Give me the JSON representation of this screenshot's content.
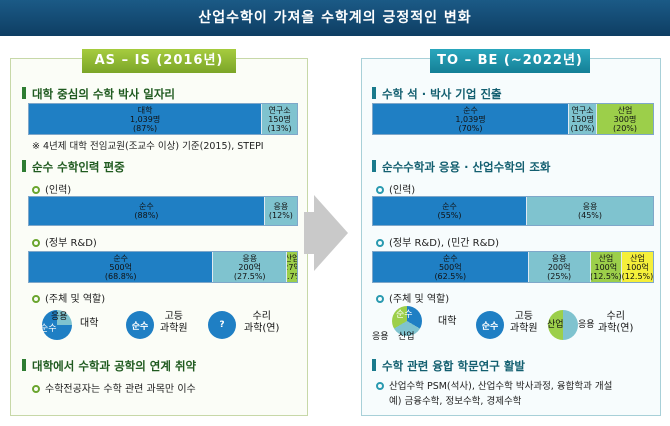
{
  "title": "산업수학이 가져올 수학계의 긍정적인 변화",
  "left": {
    "header": "AS – IS (2016년)",
    "sec1": "대학 중심의 수학 박사 일자리",
    "bar1": [
      {
        "text": "대학\n1,039명\n(87%)",
        "pct": 87,
        "color": "#1f7fc4"
      },
      {
        "text": "연구소\n150명\n(13%)",
        "pct": 13,
        "color": "#7fc3cf"
      }
    ],
    "note1": "※ 4년제 대학 전임교원(조교수 이상) 기준(2015), STEPI",
    "sec2": "순수 수학인력 편중",
    "sub_people": "(인력)",
    "bar2": [
      {
        "text": "순수\n(88%)",
        "pct": 88,
        "color": "#1f7fc4"
      },
      {
        "text": "응용\n(12%)",
        "pct": 12,
        "color": "#7fc3cf"
      }
    ],
    "sub_rd": "(정부 R&D)",
    "bar3": [
      {
        "text": "순수\n500억\n(68.8%)",
        "pct": 68.8,
        "color": "#1f7fc4"
      },
      {
        "text": "응용\n200억\n(27.5%)",
        "pct": 27.5,
        "color": "#7fc3cf"
      },
      {
        "text": "산업\n27억\n(3.7%)",
        "pct": 3.7,
        "color": "#9ccf4a"
      }
    ],
    "sub_role": "(주체 및 역할)",
    "role_pie_a": "순수",
    "role_pie_b": "응용",
    "role_1": "대학",
    "role_circle_2": "순수",
    "role_2": "고등\n과학원",
    "role_circle_3": "?",
    "role_3": "수리\n과학(연)",
    "sec3": "대학에서 수학과 공학의 연계 취약",
    "sub_last": "수학전공자는 수학 관련 과목만 이수"
  },
  "right": {
    "header": "TO – BE (~2022년)",
    "sec1": "수학 석 · 박사 기업 진출",
    "bar1": [
      {
        "text": "순수\n1,039명\n(70%)",
        "pct": 70,
        "color": "#1f7fc4"
      },
      {
        "text": "연구소\n150명\n(10%)",
        "pct": 10,
        "color": "#7fc3cf"
      },
      {
        "text": "산업\n300명\n(20%)",
        "pct": 20,
        "color": "#9ccf4a"
      }
    ],
    "sec2": "순수수학과 응용 · 산업수학의 조화",
    "sub_people": "(인력)",
    "bar2": [
      {
        "text": "순수\n(55%)",
        "pct": 55,
        "color": "#1f7fc4"
      },
      {
        "text": "응용\n(45%)",
        "pct": 45,
        "color": "#7fc3cf"
      }
    ],
    "sub_rd": "(정부 R&D), (민간 R&D)",
    "bar3": [
      {
        "text": "순수\n500억\n(62.5%)",
        "pct": 62.5,
        "color": "#1f7fc4"
      },
      {
        "text": "응용\n200억\n(25%)",
        "pct": 25,
        "color": "#7fc3cf"
      },
      {
        "text": "산업\n100억\n(12.5%)",
        "pct": 12.5,
        "color": "#9ccf4a"
      },
      {
        "text": "산업\n100억\n(12.5%)",
        "pct": 12.5,
        "color": "#f5ef3a"
      }
    ],
    "sub_role": "(주체 및 역할)",
    "role_pie_a": "순수",
    "role_pie_b": "응용",
    "role_pie_c": "산업",
    "role_1": "대학",
    "role_circle_2": "순수",
    "role_2": "고등\n과학원",
    "role_circle_3a": "산업",
    "role_circle_3b": "응용",
    "role_3": "수리\n과학(연)",
    "sec3": "수학 관련 융합 학문연구 활발",
    "sub_last_1": "산업수학 PSM(석사), 산업수학 박사과정, 융합학과 개설",
    "sub_last_2": "예) 금융수학, 정보수학, 경제수학"
  }
}
